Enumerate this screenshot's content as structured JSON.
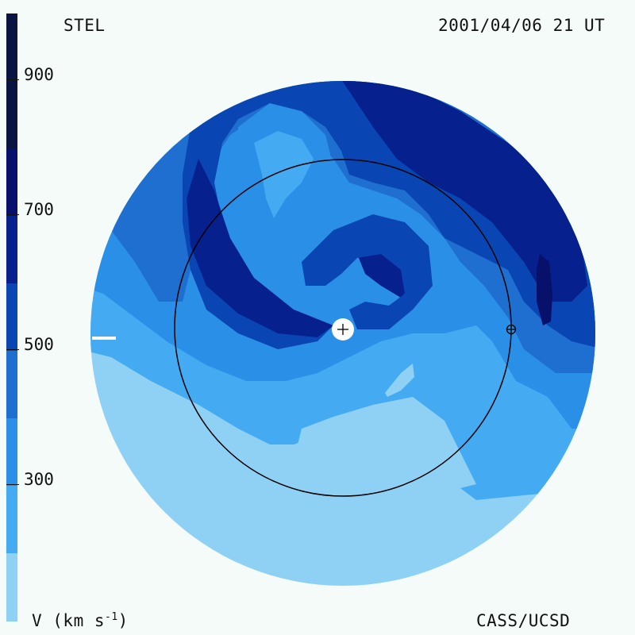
{
  "header": {
    "source": "STEL",
    "timestamp": "2001/04/06 21 UT"
  },
  "footer": {
    "unit_prefix": "V (km s",
    "unit_exp": "-1",
    "unit_suffix": ")",
    "credit": "CASS/UCSD"
  },
  "colorbar": {
    "tick_labels": [
      "900",
      "700",
      "500",
      "300"
    ],
    "colors": [
      "#0a1440",
      "#07106a",
      "#06208e",
      "#0a45b4",
      "#1f6fd0",
      "#2a8fe6",
      "#44aaf2",
      "#8fd1f5"
    ]
  },
  "map_colors": {
    "v250": "#8fd1f5",
    "v350": "#44aaf2",
    "v400": "#2a8fe6",
    "v450": "#1f6fd0",
    "v550": "#0a45b4",
    "v650": "#06208e",
    "v750": "#07106a"
  }
}
